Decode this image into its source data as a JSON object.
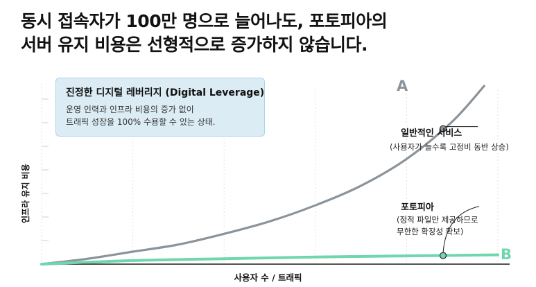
{
  "headline": {
    "line1": "동시 접속자가 100만 명으로 늘어나도, 포토피아의",
    "line2": "서버 유지 비용은 선형적으로 증가하지 않습니다."
  },
  "info_box": {
    "title": "진정한 디지털 레버리지 (Digital Leverage)",
    "line1": "운영 인력과 인프라 비용의 증가 없이",
    "line2": "트래픽 성장을 100% 수용할 수 있는 상태."
  },
  "annotations": {
    "general": {
      "title": "일반적인 서비스",
      "desc": "(사용자가 늘수록 고정비 동반 상승)"
    },
    "photopia": {
      "title": "포토피아",
      "desc_line1": "(정적 파일만 제공하므로",
      "desc_line2": "무한한 확장성 확보)"
    }
  },
  "colors": {
    "series_a": "#8b939b",
    "series_b": "#6fd6ad",
    "box_bg": "#dcecf4",
    "box_border": "#a9d3e3"
  },
  "chart_data": {
    "type": "line",
    "title": "",
    "xlabel": "사용자 수 / 트래픽",
    "ylabel": "인프라 유지 비용",
    "xlim": [
      0,
      1
    ],
    "ylim": [
      0,
      1
    ],
    "grid": true,
    "series": [
      {
        "name": "A",
        "x": [
          0,
          0.1,
          0.2,
          0.3,
          0.4,
          0.5,
          0.6,
          0.7,
          0.8,
          0.9,
          0.97
        ],
        "values": [
          0,
          0.03,
          0.07,
          0.11,
          0.17,
          0.24,
          0.33,
          0.44,
          0.59,
          0.8,
          1.0
        ]
      },
      {
        "name": "B",
        "x": [
          0,
          0.2,
          0.4,
          0.6,
          0.8,
          1.0
        ],
        "values": [
          0,
          0.02,
          0.03,
          0.04,
          0.046,
          0.052
        ]
      }
    ],
    "highlight_points": [
      {
        "series": "A",
        "x": 0.88,
        "y": 0.76
      },
      {
        "series": "B",
        "x": 0.88,
        "y": 0.048
      }
    ]
  }
}
